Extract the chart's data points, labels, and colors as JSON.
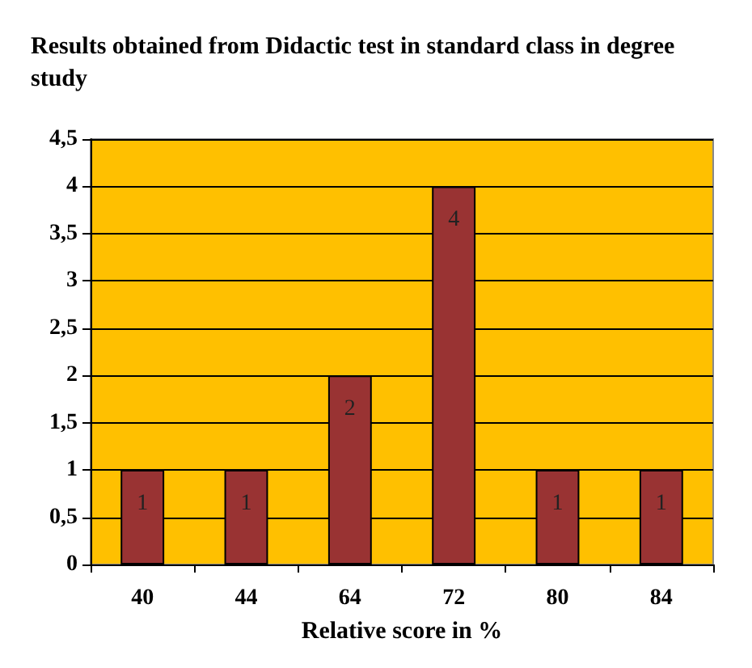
{
  "chart_data": {
    "type": "bar",
    "title": "Results obtained from Didactic test in standard class in degree study",
    "xlabel": "Relative score in %",
    "categories": [
      "40",
      "44",
      "64",
      "72",
      "80",
      "84"
    ],
    "values": [
      1,
      1,
      2,
      4,
      1,
      1
    ],
    "color": "#993333",
    "ylim": [
      0,
      4.5
    ],
    "yticks": [
      0,
      {
        "value": 0.5,
        "label": "0,5"
      },
      1,
      {
        "value": 1.5,
        "label": "1,5"
      },
      2,
      {
        "value": 2.5,
        "label": "2,5"
      },
      3,
      {
        "value": 3.5,
        "label": "3,5"
      },
      4,
      {
        "value": 4.5,
        "label": "4,5"
      }
    ],
    "grid": "y",
    "data_labels": true
  }
}
